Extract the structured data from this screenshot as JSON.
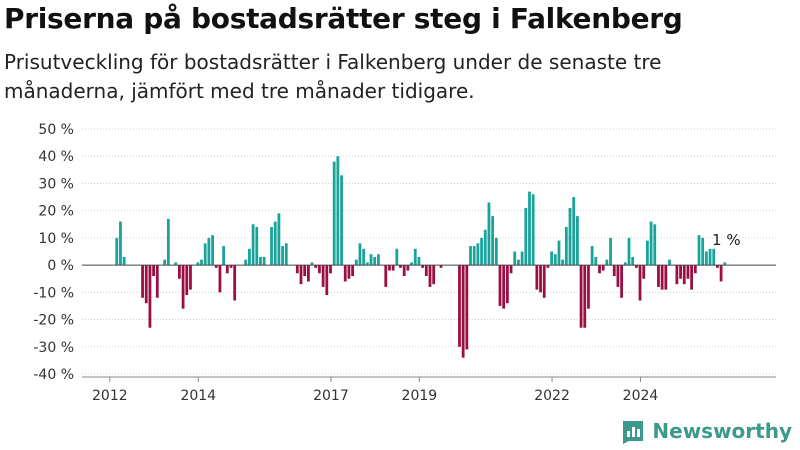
{
  "title": "Priserna på bostadsrätter steg i Falkenberg",
  "subtitle": "Prisutveckling för bostadsrätter i Falkenberg under de senaste tre månaderna, jämfört med tre månader tidigare.",
  "brand": "Newsworthy",
  "colors": {
    "positive": "#19a39a",
    "negative": "#9c0e43",
    "grid": "#cfcfcf",
    "brand": "#3d9a8b"
  },
  "chart_data": {
    "type": "bar",
    "title": "",
    "xlabel": "",
    "ylabel": "",
    "ylim": [
      -40,
      50
    ],
    "y_ticks": [
      50,
      40,
      30,
      20,
      10,
      0,
      -10,
      -20,
      -30,
      -40
    ],
    "y_tick_labels": [
      "50 %",
      "40 %",
      "30 %",
      "20 %",
      "10 %",
      "0 %",
      "-10 %",
      "-20 %",
      "-30 %",
      "-40 %"
    ],
    "x_tick_labels": [
      "2012",
      "2014",
      "2017",
      "2019",
      "2022",
      "2024"
    ],
    "x_ticks_month_index": [
      0,
      24,
      60,
      84,
      120,
      144
    ],
    "start_month": "2012-01",
    "grid": true,
    "values": [
      null,
      null,
      10,
      16,
      3,
      null,
      null,
      null,
      null,
      -12,
      -14,
      -23,
      -4,
      -12,
      null,
      2,
      17,
      null,
      1,
      -5,
      -16,
      -11,
      -9,
      null,
      1,
      2,
      8,
      10,
      11,
      -1,
      -10,
      7,
      -3,
      -1,
      -13,
      null,
      null,
      2,
      6,
      15,
      14,
      3,
      3,
      null,
      14,
      16,
      19,
      7,
      8,
      null,
      null,
      -3,
      -7,
      -4,
      -6,
      1,
      -1,
      -3,
      -8,
      -11,
      -3,
      38,
      40,
      33,
      -6,
      -5,
      -4,
      2,
      8,
      6,
      1,
      4,
      3,
      4,
      null,
      -8,
      -2,
      -2,
      6,
      -1,
      -4,
      -2,
      1,
      6,
      3,
      -1,
      -4,
      -8,
      -7,
      null,
      -1,
      null,
      null,
      null,
      null,
      -30,
      -34,
      -31,
      7,
      7,
      8,
      10,
      13,
      23,
      18,
      10,
      -15,
      -16,
      -14,
      -3,
      5,
      2,
      5,
      21,
      27,
      26,
      -9,
      -10,
      -12,
      -1,
      5,
      4,
      9,
      2,
      14,
      21,
      25,
      18,
      -23,
      -23,
      -16,
      7,
      3,
      -3,
      -2,
      2,
      10,
      -4,
      -8,
      -12,
      1,
      10,
      3,
      -1,
      -13,
      -5,
      9,
      16,
      15,
      -8,
      -9,
      -9,
      2,
      null,
      -7,
      -5,
      -7,
      -5,
      -9,
      -3,
      11,
      10,
      5,
      6,
      6,
      -1,
      -6,
      1
    ],
    "annotations": [
      {
        "month_index": 165,
        "label": "1 %"
      }
    ]
  }
}
